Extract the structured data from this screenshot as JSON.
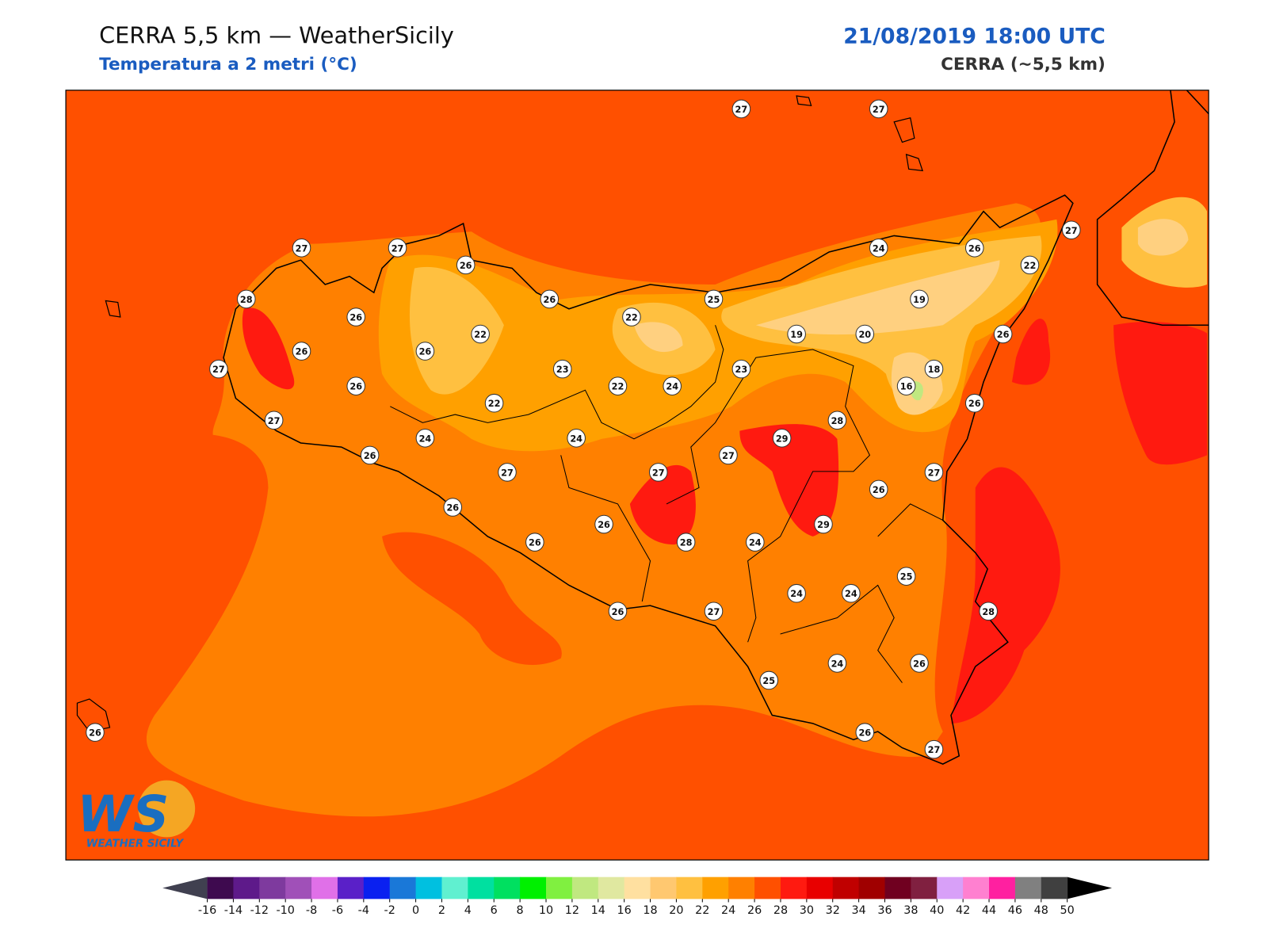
{
  "header": {
    "title": "CERRA 5,5 km — WeatherSicily",
    "subtitle": "Temperatura a 2 metri (°C)",
    "datetime": "21/08/2019 18:00 UTC",
    "model": "CERRA (~5,5 km)"
  },
  "logo": {
    "text": "WS",
    "caption": "WEATHER SICILY"
  },
  "stations": {
    "values": [
      27,
      27,
      27,
      27,
      26,
      28,
      26,
      26,
      27,
      26,
      27,
      22,
      26,
      26,
      22,
      25,
      23,
      22,
      24,
      22,
      24,
      24,
      26,
      27,
      27,
      27,
      29,
      28,
      23,
      19,
      20,
      24,
      26,
      27,
      22,
      19,
      26,
      18,
      16,
      26,
      27,
      26,
      26,
      26,
      26,
      28,
      24,
      29,
      25,
      24,
      24,
      28,
      26,
      27,
      24,
      26,
      25,
      26,
      27,
      26
    ]
  },
  "colorbar": {
    "ticks": [
      -16,
      -14,
      -12,
      -10,
      -8,
      -6,
      -4,
      -2,
      0,
      2,
      4,
      6,
      8,
      10,
      12,
      14,
      16,
      18,
      20,
      22,
      24,
      26,
      28,
      30,
      32,
      34,
      36,
      38,
      40,
      42,
      44,
      46,
      48,
      50
    ],
    "colors": [
      "#3e0a4f",
      "#5e1a8a",
      "#7e3a9e",
      "#a050b8",
      "#e070e8",
      "#5a20c8",
      "#0a20f0",
      "#1a78d8",
      "#00c0e0",
      "#60f0d0",
      "#00e0a0",
      "#00e060",
      "#00f000",
      "#80f040",
      "#c0e880",
      "#e0e8a0",
      "#ffe0a0",
      "#ffc870",
      "#ffc040",
      "#ffa000",
      "#ff8000",
      "#ff5000",
      "#ff1a10",
      "#e80000",
      "#c00000",
      "#a00000",
      "#700020",
      "#802040",
      "#d8a0f8",
      "#ff80d0",
      "#ff20a0",
      "#808080",
      "#404040"
    ],
    "under_color": "#404050",
    "over_color": "#000000"
  }
}
